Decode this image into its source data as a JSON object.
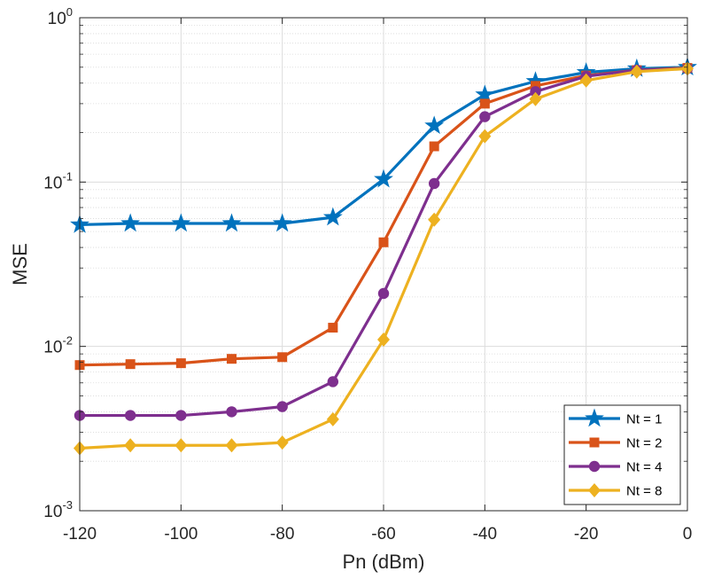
{
  "chart_data": {
    "type": "line",
    "title": "",
    "xlabel": "Pn (dBm)",
    "ylabel": "MSE",
    "yscale": "log",
    "xlim": [
      -120,
      0
    ],
    "ylim": [
      0.001,
      1
    ],
    "grid": true,
    "legend_location": "bottom-right",
    "x_ticks": [
      -120,
      -100,
      -80,
      -60,
      -40,
      -20,
      0
    ],
    "x_tick_labels": [
      "-120",
      "-100",
      "-80",
      "-60",
      "-40",
      "-20",
      "0"
    ],
    "y_ticks": [
      {
        "value": 0.001,
        "base": "10",
        "exp": "-3"
      },
      {
        "value": 0.01,
        "base": "10",
        "exp": "-2"
      },
      {
        "value": 0.1,
        "base": "10",
        "exp": "-1"
      },
      {
        "value": 1,
        "base": "10",
        "exp": "0"
      }
    ],
    "x": [
      -120,
      -110,
      -100,
      -90,
      -80,
      -70,
      -60,
      -50,
      -40,
      -30,
      -20,
      -10,
      0
    ],
    "series": [
      {
        "name": "Nt = 1",
        "color": "#0072BD",
        "marker": "star",
        "values": [
          0.055,
          0.056,
          0.056,
          0.056,
          0.056,
          0.061,
          0.104,
          0.22,
          0.34,
          0.41,
          0.465,
          0.49,
          0.5
        ]
      },
      {
        "name": "Nt = 2",
        "color": "#D95319",
        "marker": "square",
        "values": [
          0.0077,
          0.0078,
          0.0079,
          0.0084,
          0.0086,
          0.013,
          0.043,
          0.165,
          0.3,
          0.385,
          0.445,
          0.48,
          0.495
        ]
      },
      {
        "name": "Nt = 4",
        "color": "#7E2F8E",
        "marker": "circle",
        "values": [
          0.0038,
          0.0038,
          0.0038,
          0.004,
          0.0043,
          0.0061,
          0.021,
          0.098,
          0.25,
          0.355,
          0.44,
          0.48,
          0.49
        ]
      },
      {
        "name": "Nt = 8",
        "color": "#EDB120",
        "marker": "diamond",
        "values": [
          0.0024,
          0.0025,
          0.0025,
          0.0025,
          0.0026,
          0.0036,
          0.011,
          0.059,
          0.19,
          0.32,
          0.415,
          0.47,
          0.49
        ]
      }
    ]
  }
}
